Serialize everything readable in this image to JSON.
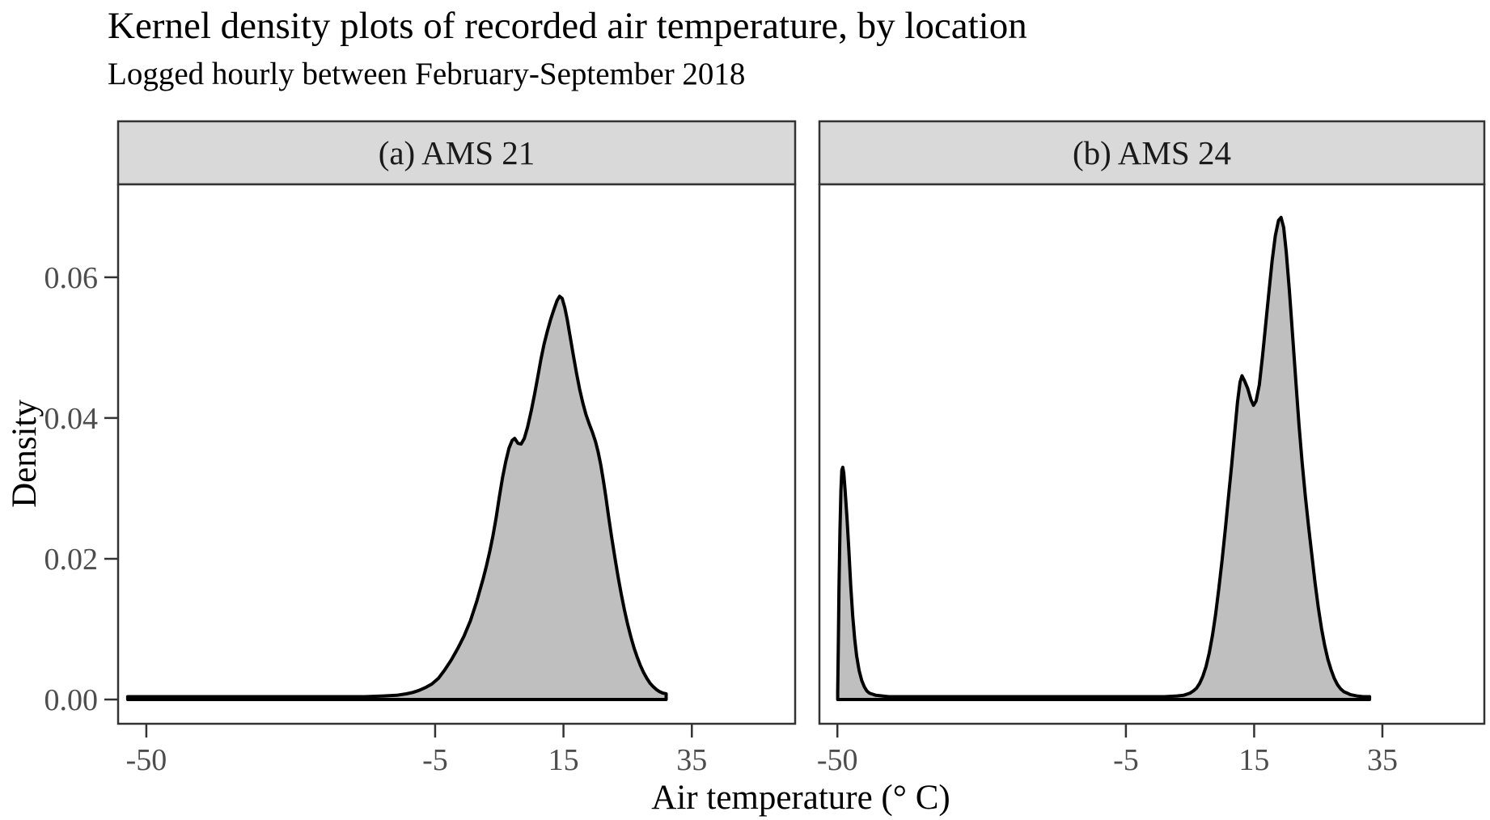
{
  "title": "Kernel density plots of recorded air temperature, by location",
  "subtitle": "Logged hourly between February-September 2018",
  "axes": {
    "x_label": "Air temperature (° C)",
    "y_label": "Density",
    "x_tick_labels": [
      "-50",
      "-5",
      "15",
      "35"
    ],
    "y_tick_labels": [
      "0.00",
      "0.02",
      "0.04",
      "0.06"
    ]
  },
  "style": {
    "fill_color": "#bfbfbf",
    "line_color": "#000000",
    "strip_background": "#d9d9d9",
    "panel_border": "#333333",
    "tick_text_color": "#4d4d4d"
  },
  "chart_data": {
    "type": "area",
    "title": "Kernel density plots of recorded air temperature, by location",
    "subtitle": "Logged hourly between February-September 2018",
    "xlabel": "Air temperature (° C)",
    "ylabel": "Density",
    "legend": "none",
    "grid": false,
    "x_breaks": [
      -50,
      -5,
      15,
      35
    ],
    "y_breaks": [
      0,
      0.02,
      0.04,
      0.06
    ],
    "y_domain": [
      -0.00345,
      0.0732
    ],
    "panels": [
      {
        "facet_label": "(a) AMS 21",
        "x_domain": [
          -54.4,
          51.1
        ],
        "points": [
          [
            -52.9,
            0.0004
          ],
          [
            -50,
            0.0004
          ],
          [
            -45,
            0.0004
          ],
          [
            -40,
            0.0004
          ],
          [
            -35,
            0.0004
          ],
          [
            -30,
            0.0004
          ],
          [
            -25,
            0.0004
          ],
          [
            -20,
            0.0004
          ],
          [
            -16,
            0.0004
          ],
          [
            -13,
            0.0005
          ],
          [
            -11,
            0.0006
          ],
          [
            -9.5,
            0.0008
          ],
          [
            -8.5,
            0.001
          ],
          [
            -7.5,
            0.0013
          ],
          [
            -6.5,
            0.0017
          ],
          [
            -5.5,
            0.0022
          ],
          [
            -4.5,
            0.003
          ],
          [
            -3.5,
            0.0042
          ],
          [
            -2.5,
            0.0056
          ],
          [
            -1.5,
            0.0072
          ],
          [
            -0.5,
            0.009
          ],
          [
            0.5,
            0.0112
          ],
          [
            1.5,
            0.014
          ],
          [
            2.5,
            0.0172
          ],
          [
            3,
            0.019
          ],
          [
            3.5,
            0.021
          ],
          [
            4,
            0.0232
          ],
          [
            4.5,
            0.0258
          ],
          [
            5,
            0.0288
          ],
          [
            5.5,
            0.0315
          ],
          [
            6,
            0.0338
          ],
          [
            6.5,
            0.0357
          ],
          [
            7,
            0.0368
          ],
          [
            7.4,
            0.0371
          ],
          [
            7.9,
            0.0364
          ],
          [
            8.4,
            0.0363
          ],
          [
            8.9,
            0.0371
          ],
          [
            9.4,
            0.0387
          ],
          [
            10,
            0.0411
          ],
          [
            10.5,
            0.0434
          ],
          [
            11,
            0.0459
          ],
          [
            11.5,
            0.0484
          ],
          [
            12,
            0.0506
          ],
          [
            12.5,
            0.0524
          ],
          [
            13,
            0.054
          ],
          [
            13.5,
            0.0554
          ],
          [
            14,
            0.0567
          ],
          [
            14.4,
            0.0573
          ],
          [
            14.8,
            0.057
          ],
          [
            15.2,
            0.0557
          ],
          [
            15.6,
            0.0539
          ],
          [
            16,
            0.0518
          ],
          [
            16.5,
            0.0491
          ],
          [
            17,
            0.0465
          ],
          [
            17.5,
            0.0442
          ],
          [
            18,
            0.0422
          ],
          [
            18.5,
            0.0405
          ],
          [
            19,
            0.0392
          ],
          [
            19.5,
            0.038
          ],
          [
            20,
            0.0366
          ],
          [
            20.4,
            0.0352
          ],
          [
            20.8,
            0.0334
          ],
          [
            21.2,
            0.0312
          ],
          [
            21.6,
            0.0288
          ],
          [
            22,
            0.0262
          ],
          [
            22.5,
            0.0231
          ],
          [
            23,
            0.0202
          ],
          [
            23.5,
            0.0175
          ],
          [
            24,
            0.015
          ],
          [
            24.5,
            0.0127
          ],
          [
            25,
            0.0107
          ],
          [
            25.5,
            0.0089
          ],
          [
            26,
            0.0073
          ],
          [
            26.5,
            0.006
          ],
          [
            27,
            0.0048
          ],
          [
            27.5,
            0.0038
          ],
          [
            28,
            0.003
          ],
          [
            28.5,
            0.0023
          ],
          [
            29,
            0.0018
          ],
          [
            29.5,
            0.0014
          ],
          [
            30,
            0.0011
          ],
          [
            30.5,
            0.0009
          ],
          [
            31,
            0.0008
          ]
        ]
      },
      {
        "facet_label": "(b) AMS 24",
        "x_domain": [
          -52.8,
          50.9
        ],
        "points": [
          [
            -49.95,
            0.001
          ],
          [
            -49.85,
            0.008
          ],
          [
            -49.75,
            0.016
          ],
          [
            -49.6,
            0.024
          ],
          [
            -49.45,
            0.0298
          ],
          [
            -49.3,
            0.0326
          ],
          [
            -49.15,
            0.033
          ],
          [
            -49,
            0.0322
          ],
          [
            -48.8,
            0.0298
          ],
          [
            -48.5,
            0.0258
          ],
          [
            -48.2,
            0.021
          ],
          [
            -47.9,
            0.016
          ],
          [
            -47.6,
            0.0118
          ],
          [
            -47.3,
            0.0086
          ],
          [
            -47,
            0.0062
          ],
          [
            -46.6,
            0.0041
          ],
          [
            -46.2,
            0.0027
          ],
          [
            -45.8,
            0.0018
          ],
          [
            -45.4,
            0.0012
          ],
          [
            -45,
            0.0009
          ],
          [
            -44,
            0.0006
          ],
          [
            -42,
            0.0004
          ],
          [
            -38,
            0.0004
          ],
          [
            -34,
            0.0004
          ],
          [
            -30,
            0.0004
          ],
          [
            -26,
            0.0004
          ],
          [
            -22,
            0.0004
          ],
          [
            -18,
            0.0004
          ],
          [
            -14,
            0.0004
          ],
          [
            -10,
            0.0004
          ],
          [
            -6,
            0.0004
          ],
          [
            -2,
            0.0004
          ],
          [
            1,
            0.0004
          ],
          [
            3,
            0.0005
          ],
          [
            4,
            0.0006
          ],
          [
            5,
            0.0009
          ],
          [
            5.5,
            0.0012
          ],
          [
            6,
            0.0016
          ],
          [
            6.5,
            0.0023
          ],
          [
            7,
            0.0033
          ],
          [
            7.5,
            0.0047
          ],
          [
            8,
            0.0066
          ],
          [
            8.5,
            0.0091
          ],
          [
            9,
            0.0122
          ],
          [
            9.5,
            0.0158
          ],
          [
            10,
            0.0198
          ],
          [
            10.5,
            0.0242
          ],
          [
            11,
            0.0288
          ],
          [
            11.5,
            0.0334
          ],
          [
            12,
            0.0384
          ],
          [
            12.4,
            0.0422
          ],
          [
            12.8,
            0.0451
          ],
          [
            13.1,
            0.046
          ],
          [
            13.5,
            0.0453
          ],
          [
            14,
            0.0442
          ],
          [
            14.5,
            0.0426
          ],
          [
            14.9,
            0.0418
          ],
          [
            15.3,
            0.0424
          ],
          [
            15.8,
            0.0447
          ],
          [
            16.3,
            0.0487
          ],
          [
            16.8,
            0.0533
          ],
          [
            17.3,
            0.0579
          ],
          [
            17.8,
            0.0623
          ],
          [
            18.3,
            0.0659
          ],
          [
            18.8,
            0.0681
          ],
          [
            19.2,
            0.0685
          ],
          [
            19.6,
            0.0671
          ],
          [
            20,
            0.0636
          ],
          [
            20.5,
            0.0581
          ],
          [
            21,
            0.0517
          ],
          [
            21.5,
            0.0452
          ],
          [
            22,
            0.039
          ],
          [
            22.5,
            0.0335
          ],
          [
            23,
            0.0288
          ],
          [
            23.5,
            0.0245
          ],
          [
            24,
            0.0205
          ],
          [
            24.5,
            0.0166
          ],
          [
            25,
            0.0131
          ],
          [
            25.5,
            0.0101
          ],
          [
            26,
            0.0077
          ],
          [
            26.5,
            0.0057
          ],
          [
            27,
            0.0042
          ],
          [
            27.5,
            0.003
          ],
          [
            28,
            0.0021
          ],
          [
            28.5,
            0.0015
          ],
          [
            29,
            0.0011
          ],
          [
            29.5,
            0.0009
          ],
          [
            30,
            0.0007
          ],
          [
            31,
            0.0005
          ],
          [
            32,
            0.0004
          ],
          [
            33,
            0.0004
          ]
        ]
      }
    ]
  }
}
